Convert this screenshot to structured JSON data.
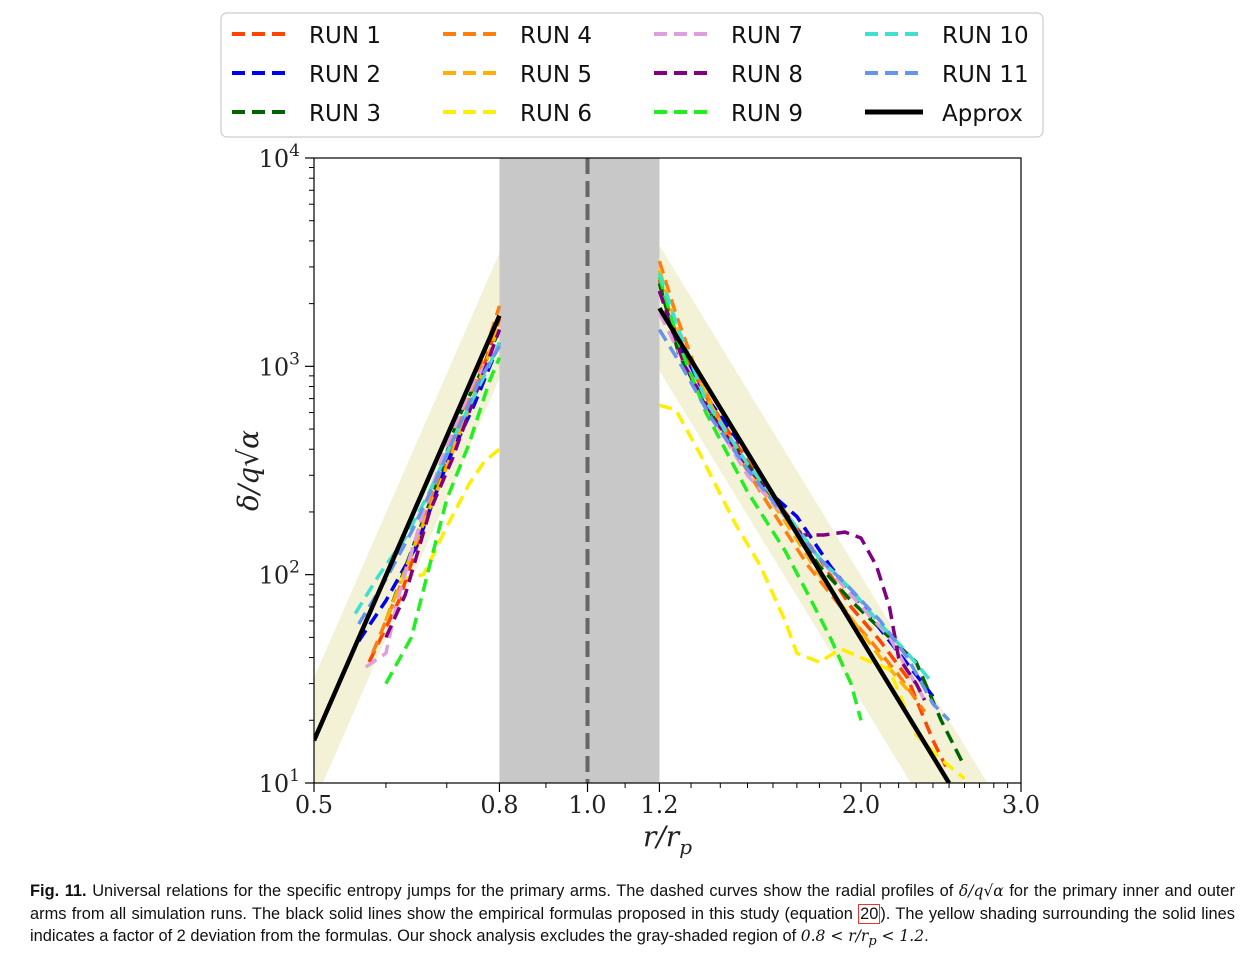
{
  "chart_data": {
    "type": "line",
    "x_scale": "log",
    "y_scale": "log",
    "xlim": [
      0.5,
      3.0
    ],
    "ylim": [
      10,
      10000
    ],
    "xlabel": "r/r_p",
    "ylabel": "δ/q√α",
    "x_ticks": [
      0.5,
      0.8,
      1.0,
      1.2,
      2.0,
      3.0
    ],
    "x_tick_labels": [
      "0.5",
      "0.8",
      "1.0",
      "1.2",
      "2.0",
      "3.0"
    ],
    "y_ticks": [
      10,
      100,
      1000,
      10000
    ],
    "y_tick_labels": [
      [
        "10",
        "1"
      ],
      [
        "10",
        "2"
      ],
      [
        "10",
        "3"
      ],
      [
        "10",
        "4"
      ]
    ],
    "excluded_region": [
      0.8,
      1.2
    ],
    "vertical_marker": 1.0,
    "legend_position": "top, outside plot",
    "approx": {
      "name": "Approx",
      "inner": [
        [
          0.5,
          16
        ],
        [
          0.8,
          1750
        ]
      ],
      "outer": [
        [
          1.2,
          1900
        ],
        [
          2.5,
          10
        ]
      ],
      "band_factor": 2,
      "band_color": "#f3f1d6"
    },
    "series": [
      {
        "name": "RUN 1",
        "color": "#ff4500",
        "inner": [
          [
            0.575,
            38
          ],
          [
            0.62,
            75
          ],
          [
            0.66,
            170
          ],
          [
            0.7,
            350
          ],
          [
            0.75,
            720
          ],
          [
            0.8,
            1700
          ]
        ],
        "outer": [
          [
            1.2,
            2600
          ],
          [
            1.26,
            1300
          ],
          [
            1.35,
            720
          ],
          [
            1.5,
            350
          ],
          [
            1.65,
            200
          ],
          [
            1.8,
            120
          ],
          [
            1.95,
            70
          ],
          [
            2.1,
            48
          ],
          [
            2.25,
            32
          ],
          [
            2.4,
            16
          ],
          [
            2.48,
            12
          ]
        ]
      },
      {
        "name": "RUN 2",
        "color": "#0000ee",
        "inner": [
          [
            0.56,
            48
          ],
          [
            0.6,
            75
          ],
          [
            0.65,
            140
          ],
          [
            0.7,
            340
          ],
          [
            0.75,
            650
          ],
          [
            0.8,
            1300
          ]
        ],
        "outer": [
          [
            1.2,
            2300
          ],
          [
            1.26,
            1300
          ],
          [
            1.35,
            720
          ],
          [
            1.5,
            380
          ],
          [
            1.6,
            240
          ],
          [
            1.7,
            190
          ],
          [
            1.85,
            110
          ],
          [
            2.0,
            72
          ],
          [
            2.15,
            48
          ],
          [
            2.3,
            33
          ],
          [
            2.4,
            26
          ]
        ]
      },
      {
        "name": "RUN 3",
        "color": "#006400",
        "inner": [
          [
            0.6,
            60
          ],
          [
            0.64,
            130
          ],
          [
            0.68,
            260
          ],
          [
            0.72,
            560
          ],
          [
            0.76,
            900
          ],
          [
            0.8,
            1500
          ]
        ],
        "outer": [
          [
            1.2,
            2500
          ],
          [
            1.26,
            1150
          ],
          [
            1.35,
            640
          ],
          [
            1.5,
            340
          ],
          [
            1.65,
            190
          ],
          [
            1.8,
            110
          ],
          [
            1.95,
            75
          ],
          [
            2.1,
            55
          ],
          [
            2.3,
            38
          ],
          [
            2.45,
            20
          ],
          [
            2.6,
            12
          ]
        ]
      },
      {
        "name": "RUN 4",
        "color": "#ff7f0e",
        "inner": [
          [
            0.58,
            42
          ],
          [
            0.62,
            85
          ],
          [
            0.66,
            190
          ],
          [
            0.7,
            380
          ],
          [
            0.75,
            800
          ],
          [
            0.8,
            1950
          ]
        ],
        "outer": [
          [
            1.2,
            3200
          ],
          [
            1.25,
            1800
          ],
          [
            1.33,
            850
          ],
          [
            1.45,
            400
          ],
          [
            1.6,
            200
          ],
          [
            1.75,
            110
          ],
          [
            1.9,
            70
          ],
          [
            2.05,
            48
          ],
          [
            2.2,
            33
          ],
          [
            2.35,
            22
          ]
        ]
      },
      {
        "name": "RUN 5",
        "color": "#ffb000",
        "inner": [
          [
            0.6,
            60
          ],
          [
            0.65,
            150
          ],
          [
            0.7,
            330
          ],
          [
            0.75,
            720
          ],
          [
            0.8,
            1600
          ]
        ],
        "outer": [
          [
            1.2,
            2900
          ],
          [
            1.27,
            1300
          ],
          [
            1.37,
            640
          ],
          [
            1.5,
            330
          ],
          [
            1.65,
            180
          ],
          [
            1.8,
            100
          ],
          [
            1.95,
            62
          ],
          [
            2.1,
            40
          ],
          [
            2.25,
            28
          ]
        ]
      },
      {
        "name": "RUN 6",
        "color": "#ffee00",
        "inner": [
          [
            0.62,
            95
          ],
          [
            0.66,
            100
          ],
          [
            0.7,
            170
          ],
          [
            0.74,
            270
          ],
          [
            0.77,
            350
          ],
          [
            0.8,
            400
          ]
        ],
        "outer": [
          [
            1.2,
            650
          ],
          [
            1.25,
            620
          ],
          [
            1.33,
            380
          ],
          [
            1.45,
            180
          ],
          [
            1.55,
            110
          ],
          [
            1.65,
            60
          ],
          [
            1.7,
            42
          ],
          [
            1.8,
            38
          ],
          [
            1.9,
            44
          ],
          [
            2.0,
            40
          ],
          [
            2.15,
            35
          ],
          [
            2.3,
            17
          ],
          [
            2.45,
            13
          ],
          [
            2.6,
            10.5
          ]
        ]
      },
      {
        "name": "RUN 7",
        "color": "#dda0dd",
        "inner": [
          [
            0.57,
            36
          ],
          [
            0.6,
            42
          ],
          [
            0.62,
            80
          ],
          [
            0.66,
            200
          ],
          [
            0.7,
            420
          ],
          [
            0.75,
            850
          ],
          [
            0.8,
            1250
          ]
        ],
        "outer": [
          [
            1.2,
            1800
          ],
          [
            1.27,
            1100
          ],
          [
            1.37,
            580
          ],
          [
            1.5,
            300
          ],
          [
            1.65,
            190
          ],
          [
            1.8,
            120
          ],
          [
            1.95,
            80
          ],
          [
            2.15,
            50
          ],
          [
            2.35,
            25
          ]
        ]
      },
      {
        "name": "RUN 8",
        "color": "#800080",
        "inner": [
          [
            0.6,
            50
          ],
          [
            0.63,
            80
          ],
          [
            0.67,
            200
          ],
          [
            0.71,
            360
          ],
          [
            0.75,
            700
          ],
          [
            0.8,
            1500
          ]
        ],
        "outer": [
          [
            1.2,
            2300
          ],
          [
            1.28,
            1000
          ],
          [
            1.38,
            560
          ],
          [
            1.5,
            330
          ],
          [
            1.62,
            220
          ],
          [
            1.72,
            155
          ],
          [
            1.82,
            155
          ],
          [
            1.92,
            160
          ],
          [
            2.0,
            150
          ],
          [
            2.08,
            110
          ],
          [
            2.15,
            70
          ],
          [
            2.2,
            40
          ],
          [
            2.3,
            30
          ],
          [
            2.35,
            25
          ]
        ]
      },
      {
        "name": "RUN 9",
        "color": "#22ee22",
        "inner": [
          [
            0.6,
            30
          ],
          [
            0.64,
            50
          ],
          [
            0.67,
            110
          ],
          [
            0.7,
            230
          ],
          [
            0.74,
            420
          ],
          [
            0.78,
            850
          ],
          [
            0.8,
            1100
          ]
        ],
        "outer": [
          [
            1.2,
            2700
          ],
          [
            1.26,
            1300
          ],
          [
            1.35,
            600
          ],
          [
            1.5,
            250
          ],
          [
            1.65,
            130
          ],
          [
            1.75,
            80
          ],
          [
            1.85,
            50
          ],
          [
            1.95,
            30
          ],
          [
            2.0,
            20
          ]
        ]
      },
      {
        "name": "RUN 10",
        "color": "#40e0d0",
        "inner": [
          [
            0.555,
            65
          ],
          [
            0.59,
            100
          ],
          [
            0.63,
            150
          ],
          [
            0.67,
            250
          ],
          [
            0.72,
            500
          ],
          [
            0.77,
            900
          ],
          [
            0.8,
            1300
          ]
        ],
        "outer": [
          [
            1.2,
            2800
          ],
          [
            1.26,
            1500
          ],
          [
            1.35,
            680
          ],
          [
            1.5,
            340
          ],
          [
            1.65,
            200
          ],
          [
            1.8,
            120
          ],
          [
            1.95,
            85
          ],
          [
            2.1,
            58
          ],
          [
            2.25,
            42
          ],
          [
            2.4,
            30
          ]
        ]
      },
      {
        "name": "RUN 11",
        "color": "#6495ed",
        "inner": [
          [
            0.56,
            58
          ],
          [
            0.6,
            95
          ],
          [
            0.64,
            160
          ],
          [
            0.68,
            280
          ],
          [
            0.72,
            500
          ],
          [
            0.76,
            850
          ],
          [
            0.8,
            1250
          ]
        ],
        "outer": [
          [
            1.2,
            1500
          ],
          [
            1.27,
            1000
          ],
          [
            1.37,
            560
          ],
          [
            1.5,
            320
          ],
          [
            1.65,
            190
          ],
          [
            1.8,
            120
          ],
          [
            1.95,
            85
          ],
          [
            2.1,
            60
          ],
          [
            2.25,
            40
          ],
          [
            2.4,
            24
          ],
          [
            2.5,
            20
          ]
        ]
      }
    ]
  },
  "caption": {
    "label": "Fig. 11.",
    "text1": " Universal relations for the specific entropy jumps for the primary arms. The dashed curves show the radial profiles of ",
    "math1": "δ/q√α",
    "text2": " for the primary inner and outer arms from all simulation runs.  The black solid lines show the empirical formulas proposed in this study (equation ",
    "ref": "20",
    "text3": ").  The yellow shading surrounding the solid lines indicates a factor of 2 deviation from the formulas. Our shock analysis excludes the gray-shaded region of ",
    "math2": "0.8 < r/r",
    "math2_sub": "p",
    "math2_end": " < 1.2",
    "text4": "."
  }
}
